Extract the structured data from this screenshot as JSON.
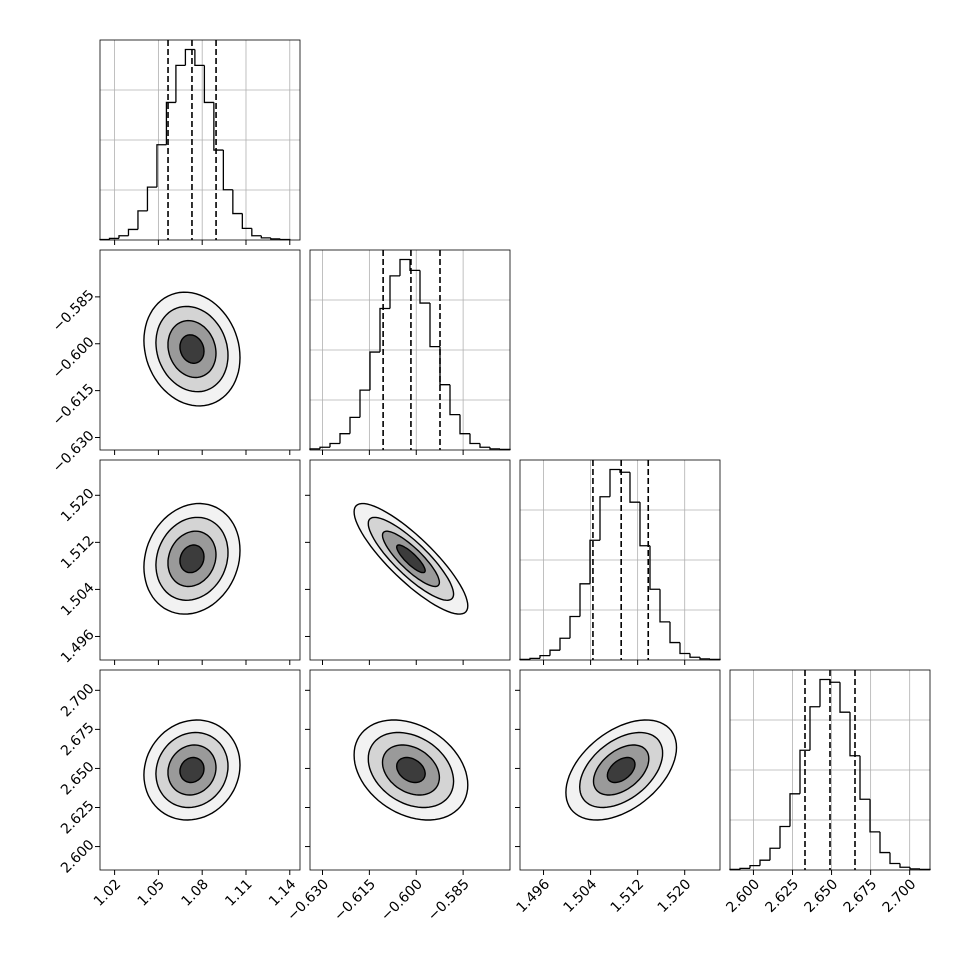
{
  "chart_data": {
    "type": "corner",
    "grid": true,
    "sigma_levels": [
      2,
      1.5,
      1,
      0.5
    ],
    "parameters": [
      {
        "xlim": [
          1.01,
          1.147
        ],
        "ticks": [
          1.02,
          1.05,
          1.08,
          1.11,
          1.14
        ],
        "bins": [
          1.01,
          1.0165,
          1.023,
          1.0295,
          1.036,
          1.0425,
          1.049,
          1.0555,
          1.062,
          1.0685,
          1.075,
          1.0815,
          1.088,
          1.0945,
          1.101,
          1.1075,
          1.114,
          1.1205,
          1.127,
          1.1335,
          1.14
        ],
        "counts": [
          1,
          3,
          8,
          20,
          55,
          100,
          180,
          260,
          330,
          360,
          330,
          260,
          170,
          95,
          50,
          22,
          8,
          4,
          2,
          1
        ],
        "quantiles": [
          1.0566,
          1.073,
          1.0895
        ]
      },
      {
        "xlim": [
          -0.634,
          -0.57
        ],
        "ticks": [
          {
            "value": -0.63,
            "label": "−0.630"
          },
          {
            "value": -0.615,
            "label": "−0.615"
          },
          {
            "value": -0.6,
            "label": "−0.600"
          },
          {
            "value": -0.585,
            "label": "−0.585"
          }
        ],
        "bins": [
          -0.634,
          -0.6308,
          -0.6276,
          -0.6244,
          -0.6212,
          -0.618,
          -0.6148,
          -0.6116,
          -0.6084,
          -0.6052,
          -0.602,
          -0.5988,
          -0.5956,
          -0.5924,
          -0.5892,
          -0.586,
          -0.5828,
          -0.5796,
          -0.5764,
          -0.5732,
          -0.57
        ],
        "counts": [
          2,
          5,
          12,
          30,
          60,
          110,
          180,
          260,
          320,
          350,
          330,
          270,
          190,
          120,
          65,
          30,
          12,
          5,
          2,
          1
        ],
        "quantiles": [
          -0.6106,
          -0.6017,
          -0.5924
        ]
      },
      {
        "xlim": [
          1.492,
          1.526
        ],
        "ticks": [
          1.496,
          1.504,
          1.512,
          {
            "value": 1.52,
            "label": "1.520"
          }
        ],
        "bins": [
          1.492,
          1.4937,
          1.4954,
          1.4971,
          1.4988,
          1.5005,
          1.5022,
          1.5039,
          1.5056,
          1.5073,
          1.509,
          1.5107,
          1.5124,
          1.5141,
          1.5158,
          1.5175,
          1.5192,
          1.5209,
          1.5226,
          1.5243,
          1.526
        ],
        "counts": [
          1,
          3,
          8,
          18,
          40,
          80,
          140,
          220,
          300,
          350,
          345,
          290,
          210,
          130,
          70,
          32,
          12,
          5,
          2,
          1
        ],
        "quantiles": [
          1.5044,
          1.5092,
          1.5138
        ]
      },
      {
        "xlim": [
          2.585,
          2.713
        ],
        "ticks": [
          {
            "value": 2.6,
            "label": "2.600"
          },
          2.625,
          {
            "value": 2.65,
            "label": "2.650"
          },
          2.675,
          {
            "value": 2.7,
            "label": "2.700"
          }
        ],
        "bins": [
          2.585,
          2.5914,
          2.5978,
          2.6042,
          2.6106,
          2.617,
          2.6234,
          2.6298,
          2.6362,
          2.6426,
          2.649,
          2.6554,
          2.6618,
          2.6682,
          2.6746,
          2.681,
          2.6874,
          2.6938,
          2.7002,
          2.7066,
          2.713
        ],
        "counts": [
          1,
          3,
          8,
          18,
          40,
          80,
          140,
          220,
          300,
          350,
          345,
          290,
          210,
          130,
          70,
          32,
          12,
          5,
          2,
          1
        ],
        "quantiles": [
          2.633,
          2.649,
          2.665
        ]
      }
    ],
    "panels": [
      {
        "row": 1,
        "col": 0,
        "rho": -0.15
      },
      {
        "row": 2,
        "col": 0,
        "rho": 0.15
      },
      {
        "row": 2,
        "col": 1,
        "rho": -0.85
      },
      {
        "row": 3,
        "col": 0,
        "rho": 0.1
      },
      {
        "row": 3,
        "col": 1,
        "rho": -0.3
      },
      {
        "row": 3,
        "col": 2,
        "rho": 0.45
      }
    ]
  }
}
